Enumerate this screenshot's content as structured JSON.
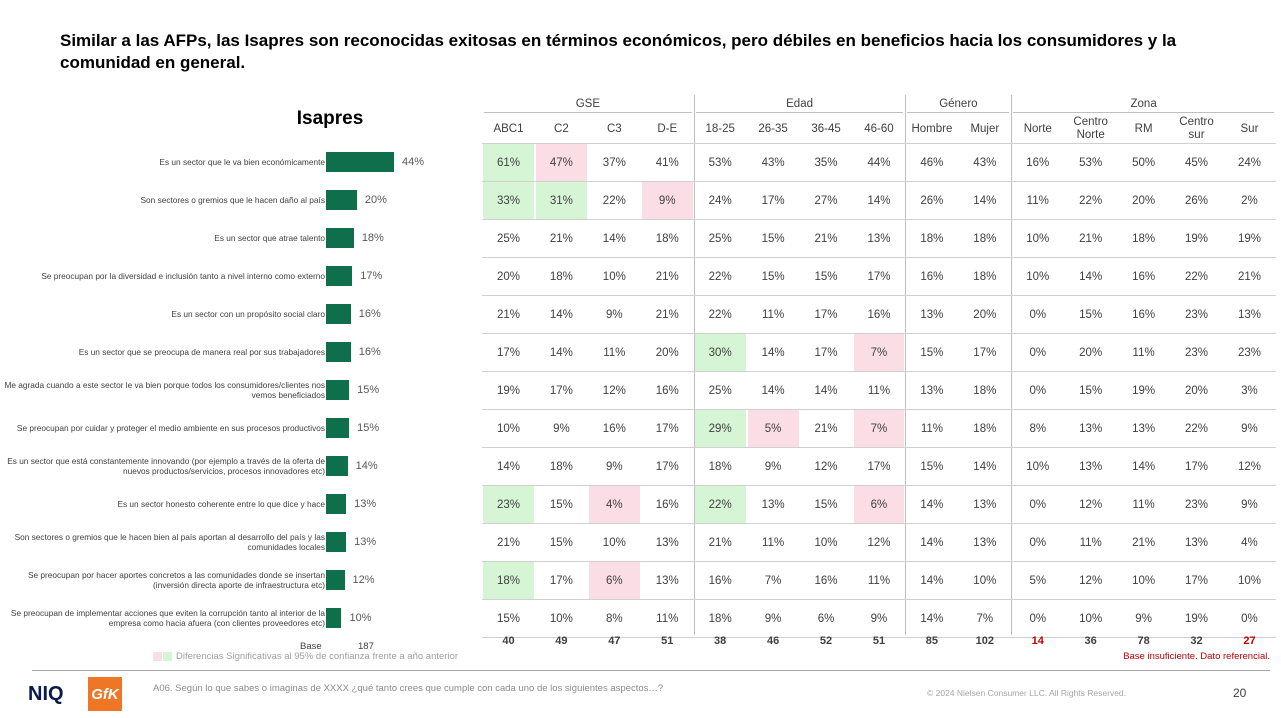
{
  "title": "Similar a las AFPs, las Isapres son reconocidas exitosas en términos económicos, pero débiles en beneficios hacia los consumidores y la comunidad en general.",
  "chart_data": {
    "type": "bar",
    "title": "Isapres",
    "categories": [
      "Es un sector que le va bien económicamente",
      "Son sectores o gremios que le hacen daño al país",
      "Es un sector que atrae talento",
      "Se preocupan por la diversidad e inclusión tanto a nivel interno como externo",
      "Es un sector con un propósito social claro",
      "Es un sector que se preocupa de manera real por sus trabajadores",
      "Me agrada cuando a este sector le va bien porque todos los consumidores/clientes nos vemos beneficiados",
      "Se preocupan por cuidar y proteger el medio ambiente en sus procesos productivos",
      "Es un sector que está constantemente innovando (por ejemplo a través de la oferta de nuevos productos/servicios, procesos innovadores etc)",
      "Es un sector honesto coherente entre lo que dice y hace",
      "Son sectores o gremios que le hacen bien al país aportan al desarrollo del país y las comunidades locales",
      "Se preocupan por hacer aportes concretos a las comunidades donde se insertan (inversión directa aporte de infraestructura etc)",
      "Se preocupan de implementar acciones que eviten la corrupción tanto al interior de la empresa como hacia afuera (con clientes proveedores etc)"
    ],
    "values": [
      44,
      20,
      18,
      17,
      16,
      16,
      15,
      15,
      14,
      13,
      13,
      12,
      10
    ],
    "value_labels": [
      "44%",
      "20%",
      "18%",
      "17%",
      "16%",
      "16%",
      "15%",
      "15%",
      "14%",
      "13%",
      "13%",
      "12%",
      "10%"
    ],
    "base_label": "Base",
    "base_total": "187"
  },
  "table": {
    "groups": [
      {
        "name": "GSE",
        "span": 4
      },
      {
        "name": "Edad",
        "span": 4
      },
      {
        "name": "Género",
        "span": 2
      },
      {
        "name": "Zona",
        "span": 5
      }
    ],
    "columns": [
      "ABC1",
      "C2",
      "C3",
      "D-E",
      "18-25",
      "26-35",
      "36-45",
      "46-60",
      "Hombre",
      "Mujer",
      "Norte",
      "Centro Norte",
      "RM",
      "Centro sur",
      "Sur"
    ],
    "rows": [
      [
        "61%",
        "47%",
        "37%",
        "41%",
        "53%",
        "43%",
        "35%",
        "44%",
        "46%",
        "43%",
        "16%",
        "53%",
        "50%",
        "45%",
        "24%"
      ],
      [
        "33%",
        "31%",
        "22%",
        "9%",
        "24%",
        "17%",
        "27%",
        "14%",
        "26%",
        "14%",
        "11%",
        "22%",
        "20%",
        "26%",
        "2%"
      ],
      [
        "25%",
        "21%",
        "14%",
        "18%",
        "25%",
        "15%",
        "21%",
        "13%",
        "18%",
        "18%",
        "10%",
        "21%",
        "18%",
        "19%",
        "19%"
      ],
      [
        "20%",
        "18%",
        "10%",
        "21%",
        "22%",
        "15%",
        "15%",
        "17%",
        "16%",
        "18%",
        "10%",
        "14%",
        "16%",
        "22%",
        "21%"
      ],
      [
        "21%",
        "14%",
        "9%",
        "21%",
        "22%",
        "11%",
        "17%",
        "16%",
        "13%",
        "20%",
        "0%",
        "15%",
        "16%",
        "23%",
        "13%"
      ],
      [
        "17%",
        "14%",
        "11%",
        "20%",
        "30%",
        "14%",
        "17%",
        "7%",
        "15%",
        "17%",
        "0%",
        "20%",
        "11%",
        "23%",
        "23%"
      ],
      [
        "19%",
        "17%",
        "12%",
        "16%",
        "25%",
        "14%",
        "14%",
        "11%",
        "13%",
        "18%",
        "0%",
        "15%",
        "19%",
        "20%",
        "3%"
      ],
      [
        "10%",
        "9%",
        "16%",
        "17%",
        "29%",
        "5%",
        "21%",
        "7%",
        "11%",
        "18%",
        "8%",
        "13%",
        "13%",
        "22%",
        "9%"
      ],
      [
        "14%",
        "18%",
        "9%",
        "17%",
        "18%",
        "9%",
        "12%",
        "17%",
        "15%",
        "14%",
        "10%",
        "13%",
        "14%",
        "17%",
        "12%"
      ],
      [
        "23%",
        "15%",
        "4%",
        "16%",
        "22%",
        "13%",
        "15%",
        "6%",
        "14%",
        "13%",
        "0%",
        "12%",
        "11%",
        "23%",
        "9%"
      ],
      [
        "21%",
        "15%",
        "10%",
        "13%",
        "21%",
        "11%",
        "10%",
        "12%",
        "14%",
        "13%",
        "0%",
        "11%",
        "21%",
        "13%",
        "4%"
      ],
      [
        "18%",
        "17%",
        "6%",
        "13%",
        "16%",
        "7%",
        "16%",
        "11%",
        "14%",
        "10%",
        "5%",
        "12%",
        "10%",
        "17%",
        "10%"
      ],
      [
        "15%",
        "10%",
        "8%",
        "11%",
        "18%",
        "9%",
        "6%",
        "9%",
        "14%",
        "7%",
        "0%",
        "10%",
        "9%",
        "19%",
        "0%"
      ]
    ],
    "highlights": [
      {
        "row": 0,
        "col": 0,
        "type": "pos"
      },
      {
        "row": 0,
        "col": 1,
        "type": "neg"
      },
      {
        "row": 1,
        "col": 0,
        "type": "pos"
      },
      {
        "row": 1,
        "col": 1,
        "type": "pos"
      },
      {
        "row": 1,
        "col": 3,
        "type": "neg"
      },
      {
        "row": 5,
        "col": 4,
        "type": "pos"
      },
      {
        "row": 5,
        "col": 7,
        "type": "neg"
      },
      {
        "row": 7,
        "col": 4,
        "type": "pos"
      },
      {
        "row": 7,
        "col": 5,
        "type": "neg"
      },
      {
        "row": 7,
        "col": 7,
        "type": "neg"
      },
      {
        "row": 9,
        "col": 0,
        "type": "pos"
      },
      {
        "row": 9,
        "col": 2,
        "type": "neg"
      },
      {
        "row": 9,
        "col": 4,
        "type": "pos"
      },
      {
        "row": 9,
        "col": 7,
        "type": "neg"
      },
      {
        "row": 11,
        "col": 0,
        "type": "pos"
      },
      {
        "row": 11,
        "col": 2,
        "type": "neg"
      }
    ],
    "bases": [
      "40",
      "49",
      "47",
      "51",
      "38",
      "46",
      "52",
      "51",
      "85",
      "102",
      "14",
      "36",
      "78",
      "32",
      "27"
    ],
    "insufficient_base_cols": [
      10,
      14
    ]
  },
  "legend_text": "Diferencias Significativas al 95% de confianza frente a año anterior",
  "colors": {
    "bar": "#0f6e4c",
    "pos": "#d5f5d5",
    "neg": "#fbdde6",
    "warn": "#c00000"
  },
  "note_red": "Base insuficiente. Dato referencial.",
  "question": "A06. Según lo que sabes o imaginas de XXXX ¿qué tanto crees que cumple con cada uno de los siguientes aspectos…?",
  "copyright": "© 2024 Nielsen Consumer LLC. All Rights Reserved.",
  "page_number": "20",
  "logos": {
    "niq": "NIQ",
    "gfk": "GfK"
  }
}
